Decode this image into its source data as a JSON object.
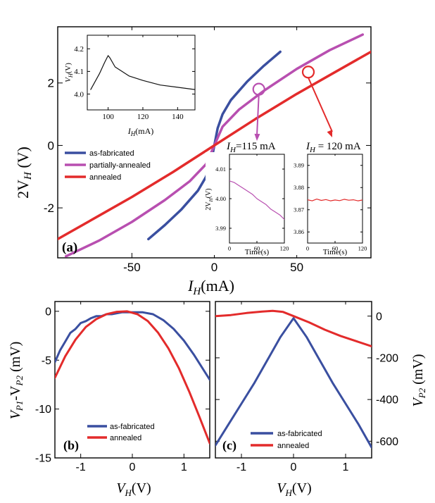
{
  "chart_data": [
    {
      "id": "a",
      "type": "line",
      "panel_label": "(a)",
      "xlabel_main": "I",
      "xlabel_sub": "H",
      "xlabel_unit": "(mA)",
      "ylabel_main": "2V",
      "ylabel_sub": "H",
      "ylabel_unit": "(V)",
      "xlim": [
        -95,
        95
      ],
      "ylim": [
        -3.6,
        3.8
      ],
      "xticks": [
        -50,
        0,
        50
      ],
      "xtick_labels": [
        "-50",
        "0",
        "50"
      ],
      "yticks": [
        -2,
        0,
        2
      ],
      "ytick_labels": [
        "-2",
        "0",
        "2"
      ],
      "legend_position": "center-left",
      "series": [
        {
          "name": "as-fabricated",
          "color": "#3a4fa0",
          "x": [
            -40,
            -30,
            -20,
            -10,
            -5,
            -2,
            0,
            2,
            5,
            10,
            20,
            30,
            40
          ],
          "y": [
            -3.0,
            -2.55,
            -2.05,
            -1.45,
            -1.0,
            -0.55,
            0,
            0.55,
            1.0,
            1.45,
            2.05,
            2.55,
            3.0
          ]
        },
        {
          "name": "partially-annealed",
          "color": "#b84fb0",
          "x": [
            -90,
            -70,
            -50,
            -30,
            -15,
            -5,
            0,
            5,
            15,
            30,
            50,
            70,
            90
          ],
          "y": [
            -3.55,
            -3.05,
            -2.45,
            -1.75,
            -1.15,
            -0.6,
            0,
            0.6,
            1.15,
            1.75,
            2.45,
            3.05,
            3.55
          ]
        },
        {
          "name": "annealed",
          "color": "#e32b2b",
          "x": [
            -95,
            -70,
            -50,
            -25,
            0,
            25,
            50,
            70,
            95
          ],
          "y": [
            -3.0,
            -2.25,
            -1.65,
            -0.85,
            0,
            0.85,
            1.65,
            2.25,
            3.0
          ]
        }
      ],
      "markers": [
        {
          "x": 27,
          "y": 1.8,
          "color": "#b84fb0",
          "label": "115 mA"
        },
        {
          "x": 57,
          "y": 2.35,
          "color": "#e32b2b",
          "label": "120 mA"
        }
      ],
      "annotations": [
        {
          "text_main": "I",
          "text_sub": "H",
          "text_rest": "=115 mA",
          "color": "#b84fb0"
        },
        {
          "text_main": "I",
          "text_sub": "H",
          "text_rest": " = 120 mA",
          "color": "#e32b2b"
        }
      ]
    },
    {
      "id": "a-inset-main",
      "type": "line",
      "xlabel_main": "I",
      "xlabel_sub": "H",
      "xlabel_unit": "(mA)",
      "ylabel_main": "V",
      "ylabel_sub": "H",
      "ylabel_unit": "(V)",
      "xlim": [
        88,
        150
      ],
      "ylim": [
        3.93,
        4.26
      ],
      "xticks": [
        100,
        120,
        140
      ],
      "xtick_labels": [
        "100",
        "120",
        "140"
      ],
      "yticks": [
        4.0,
        4.1,
        4.2
      ],
      "ytick_labels": [
        "4.0",
        "4.1",
        "4.2"
      ],
      "series": [
        {
          "name": "V_H",
          "color": "#111111",
          "x": [
            90,
            95,
            98,
            100,
            101,
            104,
            108,
            112,
            120,
            130,
            140,
            150
          ],
          "y": [
            4.02,
            4.09,
            4.14,
            4.17,
            4.16,
            4.12,
            4.1,
            4.08,
            4.06,
            4.04,
            4.03,
            4.02
          ]
        }
      ]
    },
    {
      "id": "a-inset-115",
      "type": "line",
      "xlabel": "Time(s)",
      "ylabel_main": "2V",
      "ylabel_sub": "H",
      "ylabel_unit": "(V)",
      "xlim": [
        0,
        120
      ],
      "ylim": [
        3.985,
        4.015
      ],
      "xticks": [
        0,
        60,
        120
      ],
      "xtick_labels": [
        "0",
        "60",
        "120"
      ],
      "yticks": [
        3.99,
        4.0,
        4.01
      ],
      "ytick_labels": [
        "3.99",
        "4.00",
        "4.01"
      ],
      "series": [
        {
          "name": "115 mA",
          "color": "#b84fb0",
          "x": [
            0,
            10,
            20,
            30,
            40,
            50,
            60,
            70,
            80,
            90,
            100,
            110,
            120
          ],
          "y": [
            4.006,
            4.0055,
            4.0045,
            4.0035,
            4.0025,
            4.0015,
            4.0,
            3.999,
            3.998,
            3.9965,
            3.9955,
            3.9945,
            3.993
          ]
        }
      ]
    },
    {
      "id": "a-inset-120",
      "type": "line",
      "xlabel": "Time(s)",
      "xlim": [
        0,
        120
      ],
      "ylim": [
        3.855,
        3.895
      ],
      "xticks": [
        0,
        60,
        120
      ],
      "xtick_labels": [
        "0",
        "60",
        "120"
      ],
      "yticks": [
        3.86,
        3.87,
        3.88,
        3.89
      ],
      "ytick_labels": [
        "3.86",
        "3.87",
        "3.88",
        "3.89"
      ],
      "series": [
        {
          "name": "120 mA",
          "color": "#e32b2b",
          "x": [
            0,
            10,
            20,
            30,
            40,
            50,
            60,
            70,
            80,
            90,
            100,
            110,
            120
          ],
          "y": [
            3.8745,
            3.874,
            3.8748,
            3.8742,
            3.8746,
            3.874,
            3.8744,
            3.8741,
            3.8747,
            3.8743,
            3.8745,
            3.874,
            3.8744
          ]
        }
      ]
    },
    {
      "id": "b",
      "type": "line",
      "panel_label": "(b)",
      "xlabel_main": "V",
      "xlabel_sub": "H",
      "xlabel_unit": "(V)",
      "ylabel_main": "V",
      "ylabel_sub1": "P1",
      "ylabel_mid": "-V",
      "ylabel_sub2": "P2",
      "ylabel_unit": "(mV)",
      "xlim": [
        -1.5,
        1.5
      ],
      "ylim": [
        -15,
        1
      ],
      "xticks": [
        -1,
        0,
        1
      ],
      "xtick_labels": [
        "-1",
        "0",
        "1"
      ],
      "yticks": [
        0,
        -5,
        -10,
        -15
      ],
      "ytick_labels": [
        "0",
        "-5",
        "-10",
        "-15"
      ],
      "legend_position": "bottom-right",
      "series": [
        {
          "name": "as-fabricated",
          "color": "#3a4fa0",
          "x": [
            -1.5,
            -1.4,
            -1.3,
            -1.2,
            -1.1,
            -1.0,
            -0.9,
            -0.8,
            -0.7,
            -0.6,
            -0.5,
            -0.4,
            -0.3,
            -0.2,
            0,
            0.2,
            0.4,
            0.6,
            0.8,
            1.0,
            1.2,
            1.5
          ],
          "y": [
            -5.2,
            -4.0,
            -3.1,
            -2.2,
            -1.8,
            -1.2,
            -1.0,
            -0.7,
            -0.5,
            -0.5,
            -0.3,
            -0.3,
            -0.2,
            -0.1,
            -0.1,
            -0.1,
            -0.3,
            -0.9,
            -1.8,
            -3.0,
            -4.5,
            -7.0
          ]
        },
        {
          "name": "annealed",
          "color": "#e32b2b",
          "x": [
            -1.5,
            -1.3,
            -1.1,
            -0.9,
            -0.7,
            -0.5,
            -0.3,
            -0.1,
            0.1,
            0.3,
            0.5,
            0.7,
            0.9,
            1.1,
            1.3,
            1.5
          ],
          "y": [
            -6.8,
            -4.6,
            -2.9,
            -1.6,
            -0.8,
            -0.3,
            -0.05,
            0,
            -0.3,
            -1.0,
            -2.2,
            -3.8,
            -5.8,
            -8.2,
            -10.8,
            -13.5
          ]
        }
      ]
    },
    {
      "id": "c",
      "type": "line",
      "panel_label": "(c)",
      "xlabel_main": "V",
      "xlabel_sub": "H",
      "xlabel_unit": "(V)",
      "ylabel_main": "V",
      "ylabel_sub": "P2",
      "ylabel_unit": "(mV)",
      "xlim": [
        -1.5,
        1.5
      ],
      "ylim": [
        -680,
        70
      ],
      "xticks": [
        -1,
        0,
        1
      ],
      "xtick_labels": [
        "-1",
        "0",
        "1"
      ],
      "yticks": [
        0,
        -200,
        -400,
        -600
      ],
      "ytick_labels": [
        "0",
        "-200",
        "-400",
        "-600"
      ],
      "legend_position": "bottom-right",
      "series": [
        {
          "name": "as-fabricated",
          "color": "#3a4fa0",
          "x": [
            -1.5,
            -1.25,
            -1.0,
            -0.75,
            -0.5,
            -0.25,
            0,
            0.25,
            0.5,
            0.75,
            1.0,
            1.25,
            1.5
          ],
          "y": [
            -620,
            -520,
            -420,
            -320,
            -210,
            -100,
            -10,
            -100,
            -210,
            -320,
            -420,
            -520,
            -630
          ]
        },
        {
          "name": "annealed",
          "color": "#e32b2b",
          "x": [
            -1.5,
            -1.2,
            -0.9,
            -0.6,
            -0.4,
            -0.2,
            0,
            0.3,
            0.6,
            0.9,
            1.2,
            1.5
          ],
          "y": [
            0,
            5,
            15,
            22,
            25,
            20,
            0,
            -30,
            -65,
            -95,
            -120,
            -145
          ]
        }
      ]
    }
  ]
}
